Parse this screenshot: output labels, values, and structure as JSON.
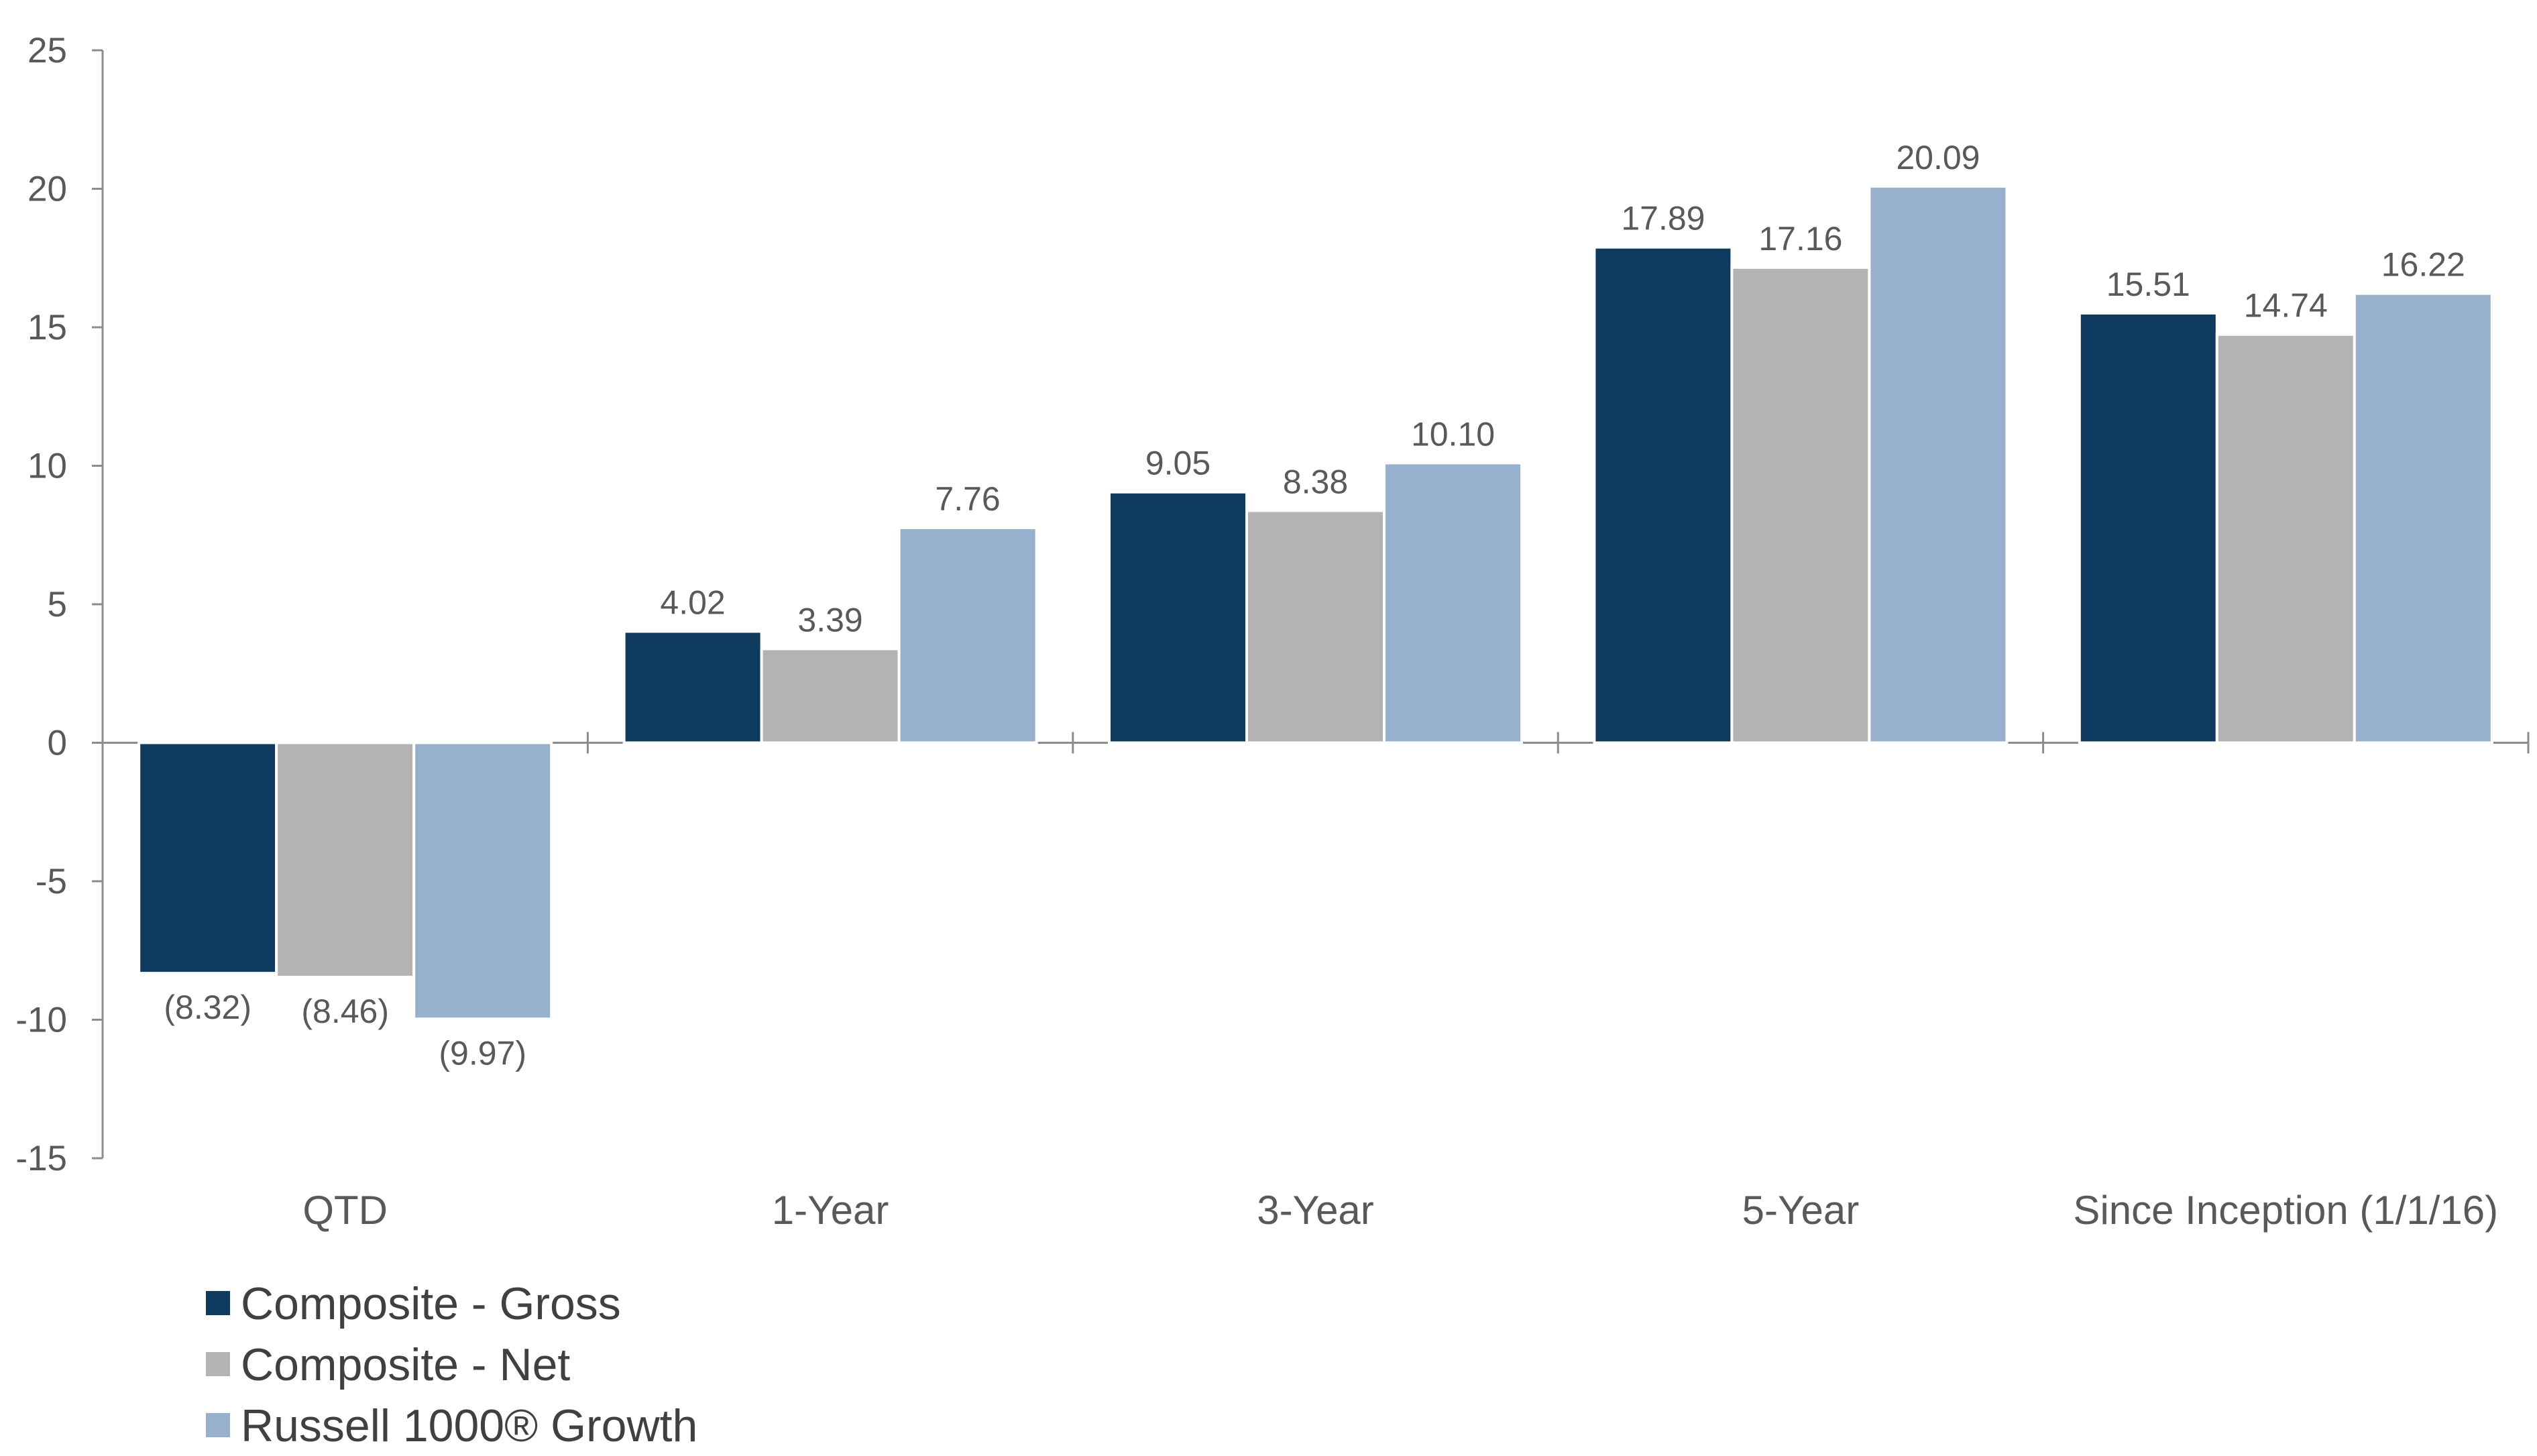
{
  "chart_data": {
    "type": "bar",
    "categories": [
      "QTD",
      "1-Year",
      "3-Year",
      "5-Year",
      "Since Inception (1/1/16)"
    ],
    "series": [
      {
        "name": "Composite - Gross",
        "color": "#0f3a5f",
        "values": [
          -8.32,
          4.02,
          9.05,
          17.89,
          15.51
        ],
        "labels": [
          "(8.32)",
          "4.02",
          "9.05",
          "17.89",
          "15.51"
        ]
      },
      {
        "name": "Composite - Net",
        "color": "#b3b3b3",
        "values": [
          -8.46,
          3.39,
          8.38,
          17.16,
          14.74
        ],
        "labels": [
          "(8.46)",
          "3.39",
          "8.38",
          "17.16",
          "14.74"
        ]
      },
      {
        "name": "Russell 1000® Growth",
        "color": "#97b0ce",
        "values": [
          -9.97,
          7.76,
          10.1,
          20.09,
          16.22
        ],
        "labels": [
          "(9.97)",
          "7.76",
          "10.10",
          "20.09",
          "16.22"
        ]
      }
    ],
    "yticks": [
      "25",
      "20",
      "15",
      "10",
      "5",
      "0",
      "-5",
      "-10",
      "-15"
    ],
    "ylim": [
      -15,
      25
    ],
    "title": "",
    "xlabel": "",
    "ylabel": "",
    "grid": false,
    "legend_position": "bottom-left"
  }
}
